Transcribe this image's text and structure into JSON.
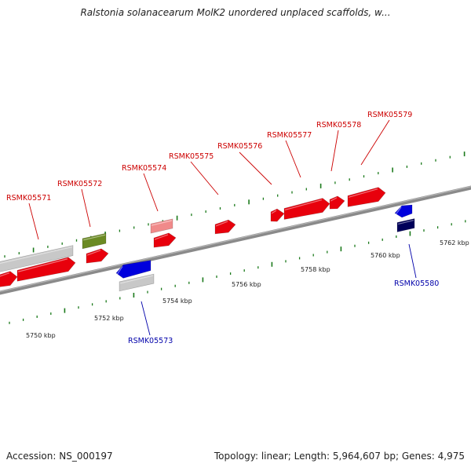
{
  "title": "Ralstonia solanacearum MolK2 unordered unplaced scaffolds, w...",
  "footer": {
    "accession": "Accession: NS_000197",
    "topology": "Topology: linear; Length: 5,964,607 bp; Genes: 4,975"
  },
  "colors": {
    "forward_gene": "#e8000c",
    "forward_gene_light": "#f08a8a",
    "reverse_gene": "#0000dd",
    "reverse_gene_dark": "#00005a",
    "olive_gene": "#6b8a23",
    "grey_gene": "#c8c8c8",
    "backbone": "#808080",
    "ticks": "#1b7a1b",
    "forward_label": "#cc0000",
    "reverse_label": "#0000aa"
  },
  "scale": {
    "labels": [
      "5750 kbp",
      "5752 kbp",
      "5754 kbp",
      "5756 kbp",
      "5758 kbp",
      "5760 kbp",
      "5762 kbp"
    ]
  },
  "gene_labels": {
    "forward": [
      "RSMK05571",
      "RSMK05572",
      "RSMK05574",
      "RSMK05575",
      "RSMK05576",
      "RSMK05577",
      "RSMK05578",
      "RSMK05579"
    ],
    "reverse": [
      "RSMK05573",
      "RSMK05580"
    ]
  }
}
